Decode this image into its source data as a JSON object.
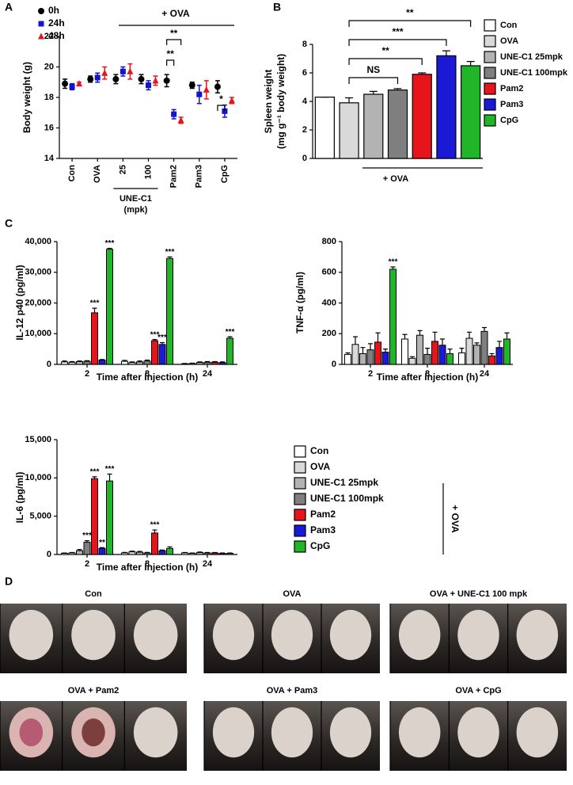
{
  "figure": {
    "panel_labels": [
      "A",
      "B",
      "C",
      "D"
    ],
    "photo_labels": [
      "Con",
      "OVA",
      "OVA + UNE-C1 100 mpk",
      "OVA + Pam2",
      "OVA + Pam3",
      "OVA + CpG"
    ]
  },
  "chart_data": [
    {
      "type": "dot",
      "y_label": "Body weight (g)",
      "categories": [
        "Con",
        "OVA",
        "25",
        "100",
        "Pam2",
        "Pam3",
        "CpG"
      ],
      "series": [
        {
          "name": "0h",
          "color": "#000000",
          "marker": "circle",
          "values": [
            18.9,
            19.2,
            19.2,
            19.2,
            19.1,
            18.8,
            18.7
          ],
          "errors": [
            0.3,
            0.2,
            0.3,
            0.3,
            0.4,
            0.2,
            0.4
          ]
        },
        {
          "name": "24h",
          "color": "#1414d0",
          "marker": "square",
          "values": [
            18.7,
            19.3,
            19.7,
            18.8,
            16.9,
            18.2,
            17.1
          ],
          "errors": [
            0.2,
            0.3,
            0.3,
            0.3,
            0.3,
            0.6,
            0.4
          ]
        },
        {
          "name": "48h",
          "color": "#e8141b",
          "marker": "triangle",
          "values": [
            18.9,
            19.6,
            19.7,
            19.1,
            16.5,
            18.5,
            17.8
          ],
          "errors": [
            0.1,
            0.4,
            0.5,
            0.3,
            0.2,
            0.6,
            0.2
          ]
        }
      ],
      "ylim": [
        14,
        22
      ],
      "yticks": [
        14,
        16,
        18,
        20,
        22
      ],
      "grid": false,
      "legend": "top-left",
      "annotations": [
        "+ OVA",
        "**",
        "**",
        "*"
      ],
      "group_label": [
        "UNE-C1",
        "(mpk)"
      ]
    },
    {
      "type": "bar",
      "y_label": [
        "Spleen weight",
        "(mg g⁻¹ body weight)"
      ],
      "categories": [
        "Con",
        "OVA",
        "UNE-C1 25mpk",
        "UNE-C1 100mpk",
        "Pam2",
        "Pam3",
        "CpG"
      ],
      "values": [
        4.3,
        3.9,
        4.5,
        4.8,
        5.9,
        7.2,
        6.5
      ],
      "errors": [
        0,
        0.35,
        0.2,
        0.1,
        0.1,
        0.35,
        0.3
      ],
      "colors": [
        "#ffffff",
        "#d9d9d9",
        "#b3b3b3",
        "#7f7f7f",
        "#e8141b",
        "#1a1ad6",
        "#21b62a"
      ],
      "ylim": [
        0,
        8
      ],
      "yticks": [
        0,
        2,
        4,
        6,
        8
      ],
      "grid": false,
      "legend": "right",
      "annotations": [
        "NS",
        "**",
        "***",
        "**",
        "+ OVA"
      ]
    },
    {
      "type": "grouped_bar",
      "y_label": "IL-12 p40 (pg/ml)",
      "x_label": "Time after injection (h)",
      "categories": [
        "2",
        "8",
        "24"
      ],
      "series": [
        {
          "color": "#ffffff",
          "values": [
            800,
            1000,
            200
          ],
          "errors": [
            300,
            300,
            100
          ]
        },
        {
          "color": "#d9d9d9",
          "values": [
            700,
            600,
            300
          ],
          "errors": [
            200,
            200,
            100
          ]
        },
        {
          "color": "#b3b3b3",
          "values": [
            900,
            800,
            600
          ],
          "errors": [
            200,
            300,
            200
          ]
        },
        {
          "color": "#7f7f7f",
          "values": [
            1000,
            1100,
            700
          ],
          "errors": [
            200,
            300,
            200
          ]
        },
        {
          "color": "#e8141b",
          "values": [
            16800,
            7700,
            700
          ],
          "errors": [
            1500,
            400,
            200
          ],
          "significance": [
            "***",
            "***",
            null
          ]
        },
        {
          "color": "#1a1ad6",
          "values": [
            1400,
            6500,
            600
          ],
          "errors": [
            200,
            600,
            200
          ],
          "significance": [
            null,
            "***",
            null
          ]
        },
        {
          "color": "#21b62a",
          "values": [
            37500,
            34500,
            8500
          ],
          "errors": [
            300,
            500,
            500
          ],
          "significance": [
            "***",
            "***",
            "***"
          ]
        }
      ],
      "ylim": [
        0,
        40000
      ],
      "yticks": [
        0,
        {
          "value": 10000,
          "label": "10,000"
        },
        {
          "value": 20000,
          "label": "20,000"
        },
        {
          "value": 30000,
          "label": "30,000"
        },
        {
          "value": 40000,
          "label": "40,000"
        }
      ],
      "grid": false,
      "legend": false
    },
    {
      "type": "grouped_bar",
      "y_label": "TNF-α (pg/ml)",
      "x_label": "Time after injection (h)",
      "categories": [
        "2",
        "8",
        "24"
      ],
      "series": [
        {
          "color": "#ffffff",
          "values": [
            65,
            165,
            75
          ],
          "errors": [
            10,
            30,
            30
          ]
        },
        {
          "color": "#d9d9d9",
          "values": [
            130,
            40,
            170
          ],
          "errors": [
            50,
            10,
            40
          ]
        },
        {
          "color": "#b3b3b3",
          "values": [
            70,
            190,
            125
          ],
          "errors": [
            40,
            30,
            15
          ]
        },
        {
          "color": "#7f7f7f",
          "values": [
            95,
            65,
            215
          ],
          "errors": [
            40,
            40,
            25
          ]
        },
        {
          "color": "#e8141b",
          "values": [
            145,
            150,
            55
          ],
          "errors": [
            60,
            60,
            15
          ]
        },
        {
          "color": "#1a1ad6",
          "values": [
            80,
            125,
            110
          ],
          "errors": [
            20,
            40,
            40
          ]
        },
        {
          "color": "#21b62a",
          "values": [
            620,
            70,
            165
          ],
          "errors": [
            15,
            30,
            40
          ],
          "significance": [
            "***",
            null,
            null
          ]
        }
      ],
      "ylim": [
        0,
        800
      ],
      "yticks": [
        0,
        200,
        400,
        600,
        800
      ],
      "grid": false,
      "legend": false
    },
    {
      "type": "grouped_bar",
      "y_label": "IL-6 (pg/ml)",
      "x_label": "Time after injection (h)",
      "categories": [
        "2",
        "8",
        "24"
      ],
      "series": [
        {
          "name": "Con",
          "color": "#ffffff",
          "values": [
            150,
            200,
            200
          ],
          "errors": [
            50,
            80,
            60
          ]
        },
        {
          "name": "OVA",
          "color": "#d9d9d9",
          "values": [
            200,
            350,
            150
          ],
          "errors": [
            60,
            80,
            50
          ]
        },
        {
          "name": "UNE-C1 25mpk",
          "color": "#b3b3b3",
          "values": [
            500,
            300,
            250
          ],
          "errors": [
            150,
            100,
            80
          ]
        },
        {
          "name": "UNE-C1 100mpk",
          "color": "#7f7f7f",
          "values": [
            1600,
            200,
            200
          ],
          "errors": [
            200,
            80,
            60
          ],
          "significance": [
            "***",
            null,
            null
          ]
        },
        {
          "name": "Pam2",
          "color": "#e8141b",
          "values": [
            9900,
            2800,
            200
          ],
          "errors": [
            250,
            400,
            60
          ],
          "significance": [
            "***",
            "***",
            null
          ]
        },
        {
          "name": "Pam3",
          "color": "#1a1ad6",
          "values": [
            800,
            500,
            150
          ],
          "errors": [
            100,
            80,
            50
          ],
          "significance": [
            "**",
            null,
            null
          ]
        },
        {
          "name": "CpG",
          "color": "#21b62a",
          "values": [
            9600,
            800,
            150
          ],
          "errors": [
            900,
            200,
            50
          ],
          "significance": [
            "***",
            null,
            null
          ]
        }
      ],
      "ylim": [
        0,
        15000
      ],
      "yticks": [
        0,
        {
          "value": 5000,
          "label": "5,000"
        },
        {
          "value": 10000,
          "label": "10,000"
        },
        {
          "value": 15000,
          "label": "15,000"
        }
      ],
      "grid": false,
      "legend": "right",
      "legend_note": "+ OVA"
    }
  ]
}
